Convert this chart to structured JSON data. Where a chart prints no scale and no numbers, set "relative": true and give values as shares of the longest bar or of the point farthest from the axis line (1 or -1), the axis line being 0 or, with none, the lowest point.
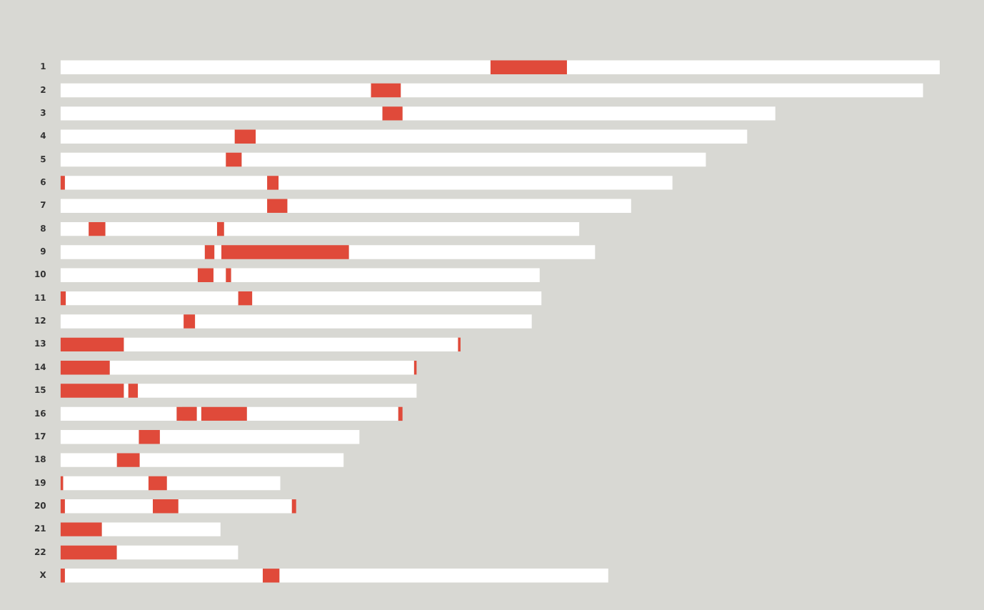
{
  "chart_data": {
    "type": "bar",
    "orientation": "horizontal",
    "stacked": true,
    "relative": true,
    "legend": false,
    "categories": [
      "1",
      "2",
      "3",
      "4",
      "5",
      "6",
      "7",
      "8",
      "9",
      "10",
      "11",
      "12",
      "13",
      "14",
      "15",
      "16",
      "17",
      "18",
      "19",
      "20",
      "21",
      "22",
      "X"
    ],
    "series": [
      {
        "color": "#ffffff",
        "values": [
          0.489,
          0.353,
          0.366,
          0.198,
          0.188,
          0,
          0.235,
          0.032,
          0.164,
          0.156,
          0,
          0.14,
          0,
          0,
          0,
          0.132,
          0.089,
          0.064,
          0,
          0,
          0,
          0,
          0
        ]
      },
      {
        "color": "#e04a3a",
        "values": [
          0.087,
          0.034,
          0.023,
          0.024,
          0.018,
          0.005,
          0.023,
          0.019,
          0.011,
          0.018,
          0.006,
          0.013,
          0.072,
          0.056,
          0.072,
          0.023,
          0.024,
          0.026,
          0.003,
          0.005,
          0.047,
          0.064,
          0.005
        ]
      },
      {
        "color": "#ffffff",
        "values": [
          0.424,
          0.594,
          0.424,
          0.559,
          0.528,
          0.23,
          0.391,
          0.127,
          0.008,
          0.014,
          0.196,
          0.383,
          0.38,
          0.346,
          0.005,
          0.005,
          0.227,
          0.232,
          0.097,
          0.1,
          0.135,
          0.138,
          0.225
        ]
      },
      {
        "color": "#e04a3a",
        "values": [
          null,
          null,
          null,
          null,
          null,
          0.013,
          null,
          0.008,
          0.145,
          0.006,
          0.016,
          null,
          0.003,
          0.003,
          0.011,
          0.052,
          null,
          null,
          0.021,
          0.029,
          null,
          null,
          0.019
        ]
      },
      {
        "color": "#ffffff",
        "values": [
          null,
          null,
          null,
          null,
          null,
          0.448,
          null,
          0.404,
          0.28,
          0.351,
          0.329,
          null,
          null,
          null,
          0.317,
          0.172,
          null,
          null,
          0.129,
          0.129,
          null,
          null,
          0.374
        ]
      },
      {
        "color": "#e04a3a",
        "values": [
          null,
          null,
          null,
          null,
          null,
          null,
          null,
          null,
          null,
          null,
          null,
          null,
          null,
          null,
          null,
          0.005,
          null,
          null,
          null,
          0.005,
          null,
          null,
          null
        ]
      }
    ]
  }
}
